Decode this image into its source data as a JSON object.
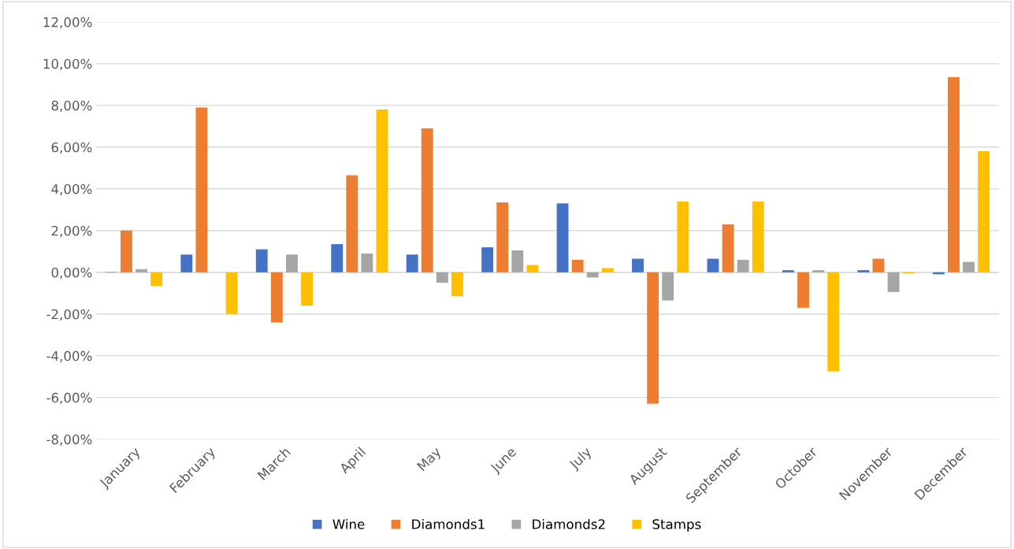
{
  "chart_data": {
    "type": "bar",
    "categories": [
      "January",
      "February",
      "March",
      "April",
      "May",
      "June",
      "July",
      "August",
      "September",
      "October",
      "November",
      "December"
    ],
    "series": [
      {
        "name": "Wine",
        "color": "#4472c4",
        "values": [
          0.02,
          0.85,
          1.1,
          1.35,
          0.85,
          1.2,
          3.3,
          0.65,
          0.65,
          0.1,
          0.1,
          -0.1
        ]
      },
      {
        "name": "Diamonds1",
        "color": "#ed7d31",
        "values": [
          2.0,
          7.9,
          -2.4,
          4.65,
          6.9,
          3.35,
          0.6,
          -6.3,
          2.3,
          -1.7,
          0.65,
          9.35
        ]
      },
      {
        "name": "Diamonds2",
        "color": "#a5a5a5",
        "values": [
          0.15,
          null,
          0.85,
          0.9,
          -0.5,
          1.05,
          -0.25,
          -1.35,
          0.6,
          0.1,
          -0.95,
          0.5
        ]
      },
      {
        "name": "Stamps",
        "color": "#ffc000",
        "values": [
          -0.65,
          -2.0,
          -1.6,
          7.8,
          -1.15,
          0.35,
          0.2,
          3.4,
          3.4,
          -4.75,
          -0.05,
          5.8
        ]
      }
    ],
    "ylim": [
      -8,
      12
    ],
    "yticks": [
      {
        "value": -8,
        "label": "-8,00%"
      },
      {
        "value": -6,
        "label": "-6,00%"
      },
      {
        "value": -4,
        "label": "-4,00%"
      },
      {
        "value": -2,
        "label": "-2,00%"
      },
      {
        "value": 0,
        "label": "0,00%"
      },
      {
        "value": 2,
        "label": "2,00%"
      },
      {
        "value": 4,
        "label": "4,00%"
      },
      {
        "value": 6,
        "label": "6,00%"
      },
      {
        "value": 8,
        "label": "8,00%"
      },
      {
        "value": 10,
        "label": "10,00%"
      },
      {
        "value": 12,
        "label": "12,00%"
      }
    ],
    "grid": "y",
    "legend": "bottom"
  }
}
